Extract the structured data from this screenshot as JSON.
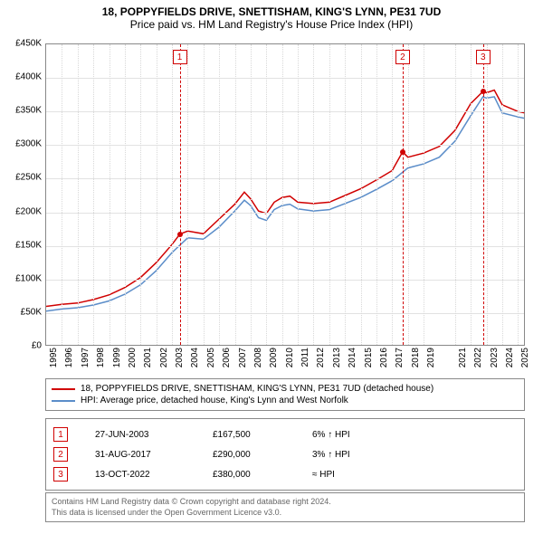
{
  "title": "18, POPPYFIELDS DRIVE, SNETTISHAM, KING'S LYNN, PE31 7UD",
  "subtitle": "Price paid vs. HM Land Registry's House Price Index (HPI)",
  "chart": {
    "type": "line",
    "background_color": "#ffffff",
    "grid_color": "#e2e2e2",
    "border_color": "#888888",
    "xlim": [
      1995,
      2025.5
    ],
    "ylim": [
      0,
      450000
    ],
    "ytick_step": 50000,
    "ytick_labels": [
      "£0",
      "£50K",
      "£100K",
      "£150K",
      "£200K",
      "£250K",
      "£300K",
      "£350K",
      "£400K",
      "£450K"
    ],
    "xticks": [
      1995,
      1996,
      1997,
      1998,
      1999,
      2000,
      2001,
      2002,
      2003,
      2004,
      2005,
      2006,
      2007,
      2008,
      2009,
      2010,
      2011,
      2012,
      2013,
      2014,
      2015,
      2016,
      2017,
      2018,
      2019,
      2021,
      2022,
      2023,
      2024,
      2025
    ],
    "title_fontsize": 12,
    "label_fontsize": 10,
    "series": [
      {
        "name": "price_paid",
        "label": "18, POPPYFIELDS DRIVE, SNETTISHAM, KING'S LYNN, PE31 7UD (detached house)",
        "color": "#d00000",
        "line_width": 1.5,
        "x": [
          1995,
          1996,
          1997,
          1998,
          1999,
          2000,
          2001,
          2002,
          2003,
          2003.5,
          2004,
          2005,
          2006,
          2007,
          2007.6,
          2008,
          2008.5,
          2009,
          2009.5,
          2010,
          2010.5,
          2011,
          2012,
          2013,
          2014,
          2015,
          2016,
          2017,
          2017.67,
          2018,
          2019,
          2020,
          2021,
          2022,
          2022.78,
          2023,
          2023.5,
          2024,
          2025,
          2025.4
        ],
        "y": [
          60000,
          63000,
          65000,
          70000,
          77000,
          88000,
          103000,
          125000,
          152000,
          167500,
          172000,
          168000,
          190000,
          212000,
          230000,
          220000,
          202000,
          198000,
          215000,
          222000,
          224000,
          215000,
          213000,
          215000,
          225000,
          235000,
          248000,
          262000,
          290000,
          282000,
          288000,
          298000,
          322000,
          362000,
          380000,
          378000,
          382000,
          360000,
          350000,
          348000
        ]
      },
      {
        "name": "hpi",
        "label": "HPI: Average price, detached house, King's Lynn and West Norfolk",
        "color": "#5b8dc9",
        "line_width": 1.5,
        "x": [
          1995,
          1996,
          1997,
          1998,
          1999,
          2000,
          2001,
          2002,
          2003,
          2004,
          2005,
          2006,
          2007,
          2007.6,
          2008,
          2008.5,
          2009,
          2009.5,
          2010,
          2010.5,
          2011,
          2012,
          2013,
          2014,
          2015,
          2016,
          2017,
          2018,
          2019,
          2020,
          2021,
          2022,
          2022.78,
          2023,
          2023.5,
          2024,
          2025,
          2025.4
        ],
        "y": [
          53000,
          56000,
          58000,
          62000,
          68000,
          78000,
          92000,
          113000,
          140000,
          162000,
          160000,
          178000,
          202000,
          218000,
          210000,
          192000,
          188000,
          204000,
          210000,
          212000,
          205000,
          202000,
          204000,
          213000,
          222000,
          234000,
          247000,
          266000,
          272000,
          282000,
          306000,
          344000,
          372000,
          370000,
          372000,
          348000,
          342000,
          340000
        ]
      }
    ],
    "markers": [
      {
        "n": "1",
        "x": 2003.49,
        "price": 167500,
        "color": "#d00000"
      },
      {
        "n": "2",
        "x": 2017.67,
        "price": 290000,
        "color": "#d00000"
      },
      {
        "n": "3",
        "x": 2022.78,
        "price": 380000,
        "color": "#d00000"
      }
    ]
  },
  "legend": {
    "items": [
      {
        "color": "#d00000",
        "text": "18, POPPYFIELDS DRIVE, SNETTISHAM, KING'S LYNN, PE31 7UD (detached house)"
      },
      {
        "color": "#5b8dc9",
        "text": "HPI: Average price, detached house, King's Lynn and West Norfolk"
      }
    ]
  },
  "sales": [
    {
      "n": "1",
      "color": "#d00000",
      "date": "27-JUN-2003",
      "price": "£167,500",
      "delta": "6% ↑ HPI"
    },
    {
      "n": "2",
      "color": "#d00000",
      "date": "31-AUG-2017",
      "price": "£290,000",
      "delta": "3% ↑ HPI"
    },
    {
      "n": "3",
      "color": "#d00000",
      "date": "13-OCT-2022",
      "price": "£380,000",
      "delta": "≈ HPI"
    }
  ],
  "footer": {
    "line1": "Contains HM Land Registry data © Crown copyright and database right 2024.",
    "line2": "This data is licensed under the Open Government Licence v3.0."
  }
}
